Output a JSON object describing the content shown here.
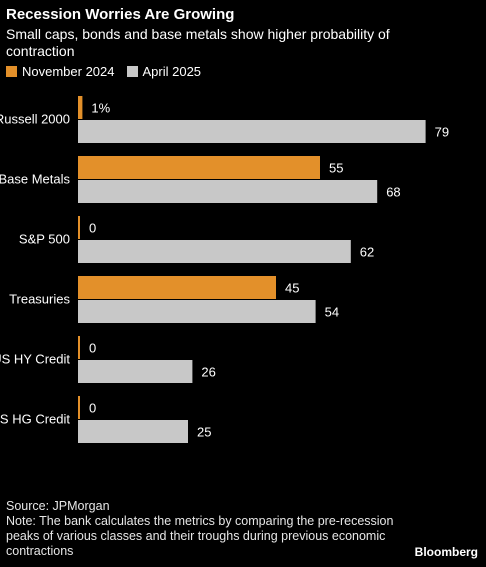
{
  "title": "Recession Worries Are Growing",
  "subtitle": "Small caps, bonds and base metals show higher probability of contraction",
  "legend": [
    {
      "label": "November 2024",
      "color": "#e3902a"
    },
    {
      "label": "April 2025",
      "color": "#c8c8c8"
    }
  ],
  "chart_data": {
    "type": "bar",
    "orientation": "horizontal",
    "categories": [
      "Russell 2000",
      "Base Metals",
      "S&P 500",
      "Treasuries",
      "US HY Credit",
      "US HG Credit"
    ],
    "series": [
      {
        "name": "November 2024",
        "values": [
          1,
          55,
          0,
          45,
          0,
          0
        ],
        "color": "#e3902a"
      },
      {
        "name": "April 2025",
        "values": [
          79,
          68,
          62,
          54,
          26,
          25
        ],
        "color": "#c8c8c8"
      }
    ],
    "data_labels": [
      [
        "1%",
        "55",
        "0",
        "45",
        "0",
        "0"
      ],
      [
        "79",
        "68",
        "62",
        "54",
        "26",
        "25"
      ]
    ],
    "xlim": [
      0,
      100
    ],
    "grid": false,
    "legend_position": "top-left"
  },
  "footer": {
    "source": "Source: JPMorgan",
    "note": "Note: The bank calculates the metrics by comparing the pre-recession peaks of various classes and their troughs during previous economic contractions"
  },
  "logo": "Bloomberg"
}
